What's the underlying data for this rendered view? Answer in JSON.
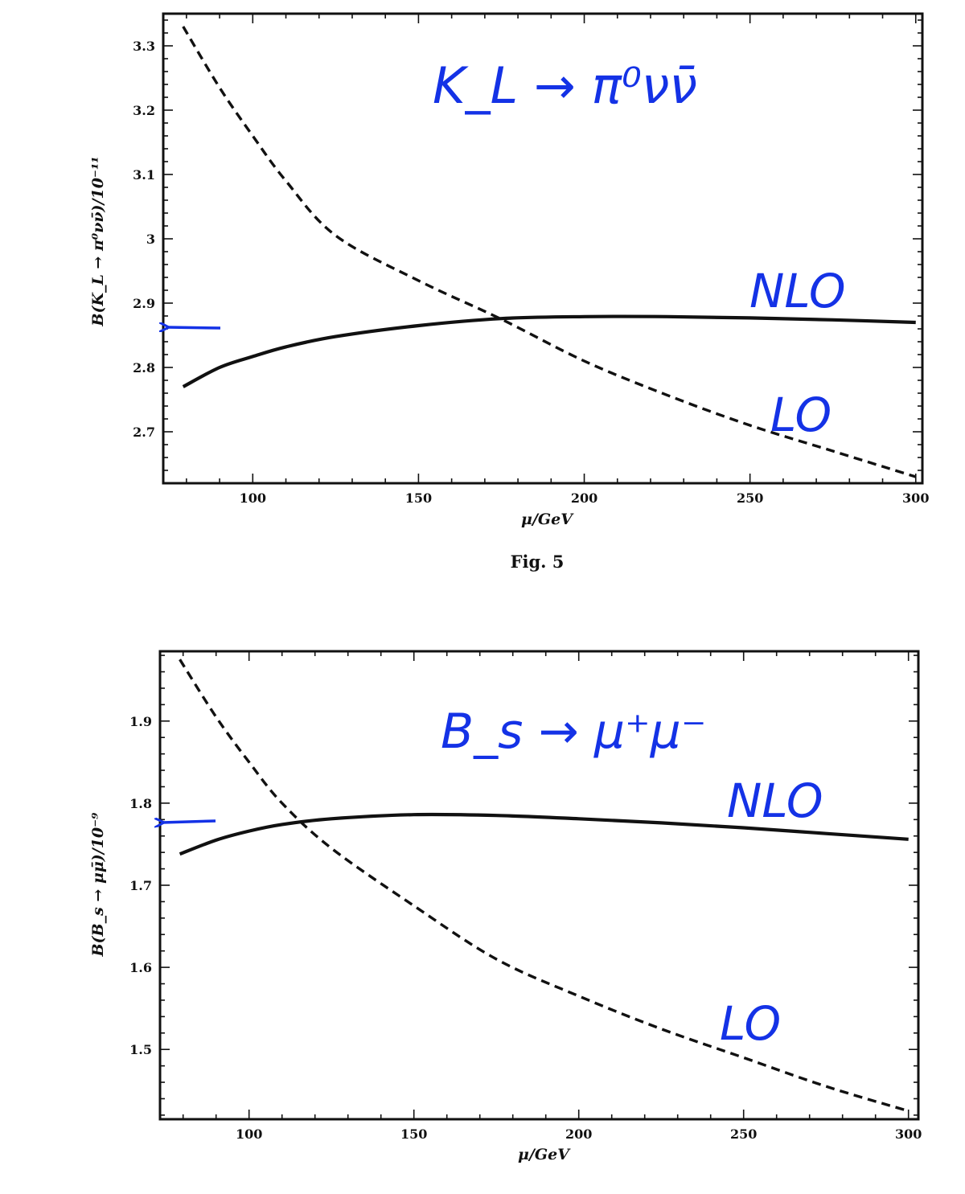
{
  "colors": {
    "annotation": "#1432e6",
    "ink": "#111111"
  },
  "chart_data": [
    {
      "type": "line",
      "caption": "Fig. 5",
      "xlabel": "μ/GeV",
      "ylabel": "B(K_L → π⁰νν̄)/10⁻¹¹",
      "xlim": [
        73,
        302
      ],
      "ylim": [
        2.62,
        3.35
      ],
      "xticks": [
        100,
        150,
        200,
        250,
        300
      ],
      "yticks": [
        2.7,
        2.8,
        2.9,
        3,
        3.1,
        3.2,
        3.3
      ],
      "ytick_labels": [
        "2.7",
        "2.8",
        "2.9",
        "3",
        "3.1",
        "3.2",
        "3.3"
      ],
      "series": [
        {
          "name": "NLO",
          "style": "solid",
          "x": [
            79,
            90,
            100,
            110,
            125,
            150,
            175,
            200,
            225,
            250,
            275,
            300
          ],
          "y": [
            2.77,
            2.8,
            2.817,
            2.832,
            2.848,
            2.865,
            2.876,
            2.879,
            2.879,
            2.877,
            2.874,
            2.87
          ]
        },
        {
          "name": "LO",
          "style": "dashed",
          "x": [
            79,
            90,
            100,
            110,
            125,
            150,
            175,
            200,
            225,
            250,
            275,
            300
          ],
          "y": [
            3.33,
            3.235,
            3.16,
            3.09,
            3.005,
            2.935,
            2.875,
            2.81,
            2.757,
            2.71,
            2.67,
            2.63
          ]
        }
      ],
      "annotations": [
        {
          "text": "K_L → π⁰νν̄",
          "kind": "handwritten"
        },
        {
          "text": "NLO",
          "kind": "handwritten"
        },
        {
          "text": "LO",
          "kind": "handwritten"
        },
        {
          "kind": "arrow",
          "points_to_y": 2.86
        }
      ]
    },
    {
      "type": "line",
      "caption": "",
      "xlabel": "μ/GeV",
      "ylabel": "B(B_s → μμ̄)/10⁻⁹",
      "xlim": [
        73,
        303
      ],
      "ylim": [
        1.415,
        1.985
      ],
      "xticks": [
        100,
        150,
        200,
        250,
        300
      ],
      "yticks": [
        1.5,
        1.6,
        1.7,
        1.8,
        1.9
      ],
      "ytick_labels": [
        "1.5",
        "1.6",
        "1.7",
        "1.8",
        "1.9"
      ],
      "series": [
        {
          "name": "NLO",
          "style": "solid",
          "x": [
            79,
            90,
            100,
            110,
            125,
            150,
            175,
            200,
            225,
            250,
            275,
            300
          ],
          "y": [
            1.738,
            1.755,
            1.766,
            1.774,
            1.781,
            1.786,
            1.785,
            1.781,
            1.776,
            1.77,
            1.763,
            1.756
          ]
        },
        {
          "name": "LO",
          "style": "dashed",
          "x": [
            79,
            90,
            100,
            110,
            125,
            150,
            175,
            200,
            225,
            250,
            275,
            300
          ],
          "y": [
            1.975,
            1.905,
            1.85,
            1.8,
            1.745,
            1.675,
            1.61,
            1.565,
            1.525,
            1.49,
            1.455,
            1.425
          ]
        }
      ],
      "annotations": [
        {
          "text": "B_s → μ⁺μ⁻",
          "kind": "handwritten"
        },
        {
          "text": "NLO",
          "kind": "handwritten"
        },
        {
          "text": "LO",
          "kind": "handwritten"
        },
        {
          "kind": "arrow",
          "points_to_y": 1.777
        }
      ]
    }
  ]
}
